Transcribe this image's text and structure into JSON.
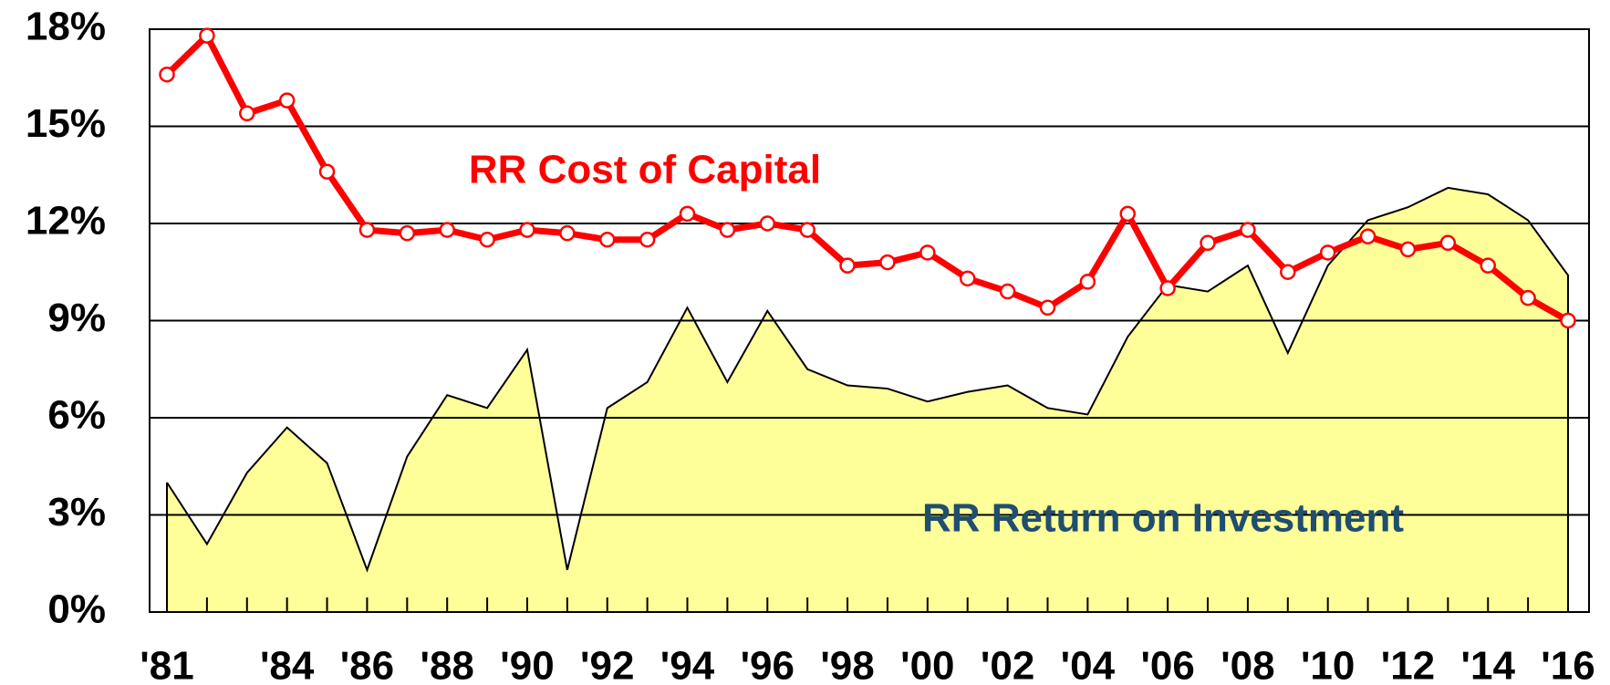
{
  "chart_data": {
    "type": "line",
    "categories": [
      "'81",
      null,
      null,
      "'84",
      null,
      "'86",
      null,
      "'88",
      null,
      "'90",
      null,
      "'92",
      null,
      "'94",
      null,
      "'96",
      null,
      "'98",
      null,
      "'00",
      null,
      "'02",
      null,
      "'04",
      null,
      "'06",
      null,
      "'08",
      null,
      "'10",
      null,
      "'12",
      null,
      "'14",
      null,
      "'16"
    ],
    "series": [
      {
        "name": "RR Cost of Capital",
        "color": "#ff0000",
        "values": [
          16.6,
          17.8,
          15.4,
          15.8,
          13.6,
          11.8,
          11.7,
          11.8,
          11.5,
          11.8,
          11.7,
          11.5,
          11.5,
          12.3,
          11.8,
          12.0,
          11.8,
          10.7,
          10.8,
          11.1,
          10.3,
          9.9,
          9.4,
          10.2,
          12.3,
          10.0,
          11.4,
          11.8,
          10.5,
          11.1,
          11.6,
          11.2,
          11.4,
          10.7,
          9.7,
          9.0
        ]
      },
      {
        "name": "RR Return on Investment",
        "color": "#ffff99",
        "label_color": "#1f4e6e",
        "values": [
          4.0,
          2.1,
          4.3,
          5.7,
          4.6,
          1.3,
          4.8,
          6.7,
          6.3,
          8.1,
          1.3,
          6.3,
          7.1,
          9.4,
          7.1,
          9.3,
          7.5,
          7.0,
          6.9,
          6.5,
          6.8,
          7.0,
          6.3,
          6.1,
          8.5,
          10.1,
          9.9,
          10.7,
          8.0,
          10.7,
          12.1,
          12.5,
          13.1,
          12.9,
          12.1,
          10.4
        ]
      }
    ],
    "ylim": [
      0,
      18
    ],
    "yticks": [
      {
        "value": 0,
        "label": "0%"
      },
      {
        "value": 3,
        "label": "3%"
      },
      {
        "value": 6,
        "label": "6%"
      },
      {
        "value": 9,
        "label": "9%"
      },
      {
        "value": 12,
        "label": "12%"
      },
      {
        "value": 15,
        "label": "15%"
      },
      {
        "value": 18,
        "label": "18%"
      }
    ],
    "grid": true
  }
}
